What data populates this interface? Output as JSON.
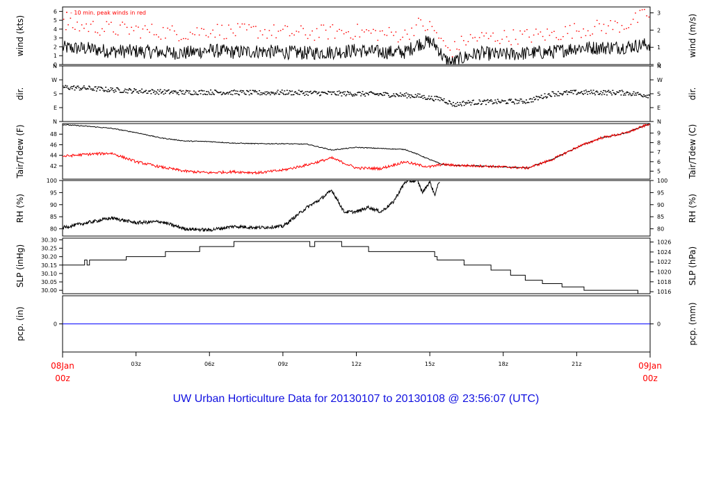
{
  "title": "UW Urban Horticulture Data for 20130107  to  20130108 @ 23:56:07  (UTC)",
  "colors": {
    "axis": "#000000",
    "primary": "#000000",
    "secondary": "#ff0000",
    "precip": "#0000ff",
    "date_label": "#ff0000",
    "title": "#1010e0"
  },
  "time_axis": {
    "range_hours": [
      0,
      24
    ],
    "start_label": [
      "08Jan",
      "00z"
    ],
    "end_label": [
      "09Jan",
      "00z"
    ],
    "ticks": [
      {
        "hour": 3,
        "label": "03z"
      },
      {
        "hour": 6,
        "label": "06z"
      },
      {
        "hour": 9,
        "label": "09z"
      },
      {
        "hour": 12,
        "label": "12z"
      },
      {
        "hour": 15,
        "label": "15z"
      },
      {
        "hour": 18,
        "label": "18z"
      },
      {
        "hour": 21,
        "label": "21z"
      }
    ]
  },
  "chart_data": [
    {
      "id": "wind",
      "type": "line",
      "ylabel_left": "wind (kts)",
      "ylabel_right": "wind (m/s)",
      "ylim": [
        0,
        6.5
      ],
      "left_ticks": [
        {
          "v": 0,
          "label": "0"
        },
        {
          "v": 1,
          "label": "1"
        },
        {
          "v": 2,
          "label": "2"
        },
        {
          "v": 3,
          "label": "3"
        },
        {
          "v": 4,
          "label": "4"
        },
        {
          "v": 5,
          "label": "5"
        },
        {
          "v": 6,
          "label": "6"
        }
      ],
      "right_ticks": [
        {
          "v": 0,
          "label": "0"
        },
        {
          "v": 1.944,
          "label": "1"
        },
        {
          "v": 3.888,
          "label": "2"
        },
        {
          "v": 5.832,
          "label": "3"
        }
      ],
      "annotation": "- 10 min. peak winds in red",
      "series": [
        {
          "name": "wind",
          "style": "line",
          "color": "#000000",
          "x": [
            0,
            1,
            2,
            3,
            4,
            5,
            6,
            7,
            8,
            9,
            10,
            11,
            12,
            13,
            14,
            14.5,
            15,
            15.3,
            15.6,
            15.9,
            16.5,
            17,
            18,
            19,
            20,
            21,
            22,
            23,
            24
          ],
          "y": [
            1.9,
            1.8,
            1.5,
            1.5,
            1.4,
            1.3,
            1.6,
            1.4,
            1.5,
            1.4,
            1.3,
            1.4,
            1.6,
            1.4,
            1.4,
            2.3,
            2.6,
            2.0,
            0.6,
            0.2,
            0.9,
            1.3,
            1.1,
            1.3,
            1.4,
            1.9,
            1.9,
            2.0,
            2.3
          ],
          "noise": 0.8
        },
        {
          "name": "10 min. peak winds",
          "style": "dots",
          "color": "#ff0000",
          "x": [
            0,
            1,
            2,
            3,
            4,
            5,
            6,
            7,
            8,
            9,
            10,
            11,
            12,
            13,
            14,
            14.5,
            15,
            15.3,
            15.6,
            15.9,
            16.5,
            17,
            18,
            19,
            20,
            21,
            22,
            23,
            24
          ],
          "y": [
            4.4,
            4.3,
            4.0,
            3.9,
            3.7,
            3.5,
            3.9,
            3.7,
            3.8,
            3.6,
            3.5,
            3.7,
            3.7,
            3.5,
            3.3,
            4.5,
            4.2,
            3.5,
            2.0,
            1.6,
            2.8,
            3.0,
            3.1,
            3.2,
            3.4,
            3.9,
            4.2,
            4.5,
            5.8
          ],
          "noise": 0.9
        }
      ]
    },
    {
      "id": "dir",
      "type": "scatter",
      "ylabel_left": "dir.",
      "ylabel_right": "dir.",
      "ylim": [
        0,
        360
      ],
      "left_ticks": [
        {
          "v": 0,
          "label": "N"
        },
        {
          "v": 90,
          "label": "E"
        },
        {
          "v": 180,
          "label": "S"
        },
        {
          "v": 270,
          "label": "W"
        },
        {
          "v": 360,
          "label": "N"
        }
      ],
      "right_ticks": [
        {
          "v": 0,
          "label": "N"
        },
        {
          "v": 90,
          "label": "E"
        },
        {
          "v": 180,
          "label": "S"
        },
        {
          "v": 270,
          "label": "W"
        },
        {
          "v": 360,
          "label": "N"
        }
      ],
      "series": [
        {
          "name": "direction",
          "style": "dots",
          "color": "#000000",
          "x": [
            0,
            1,
            2,
            3,
            4,
            5,
            6,
            7,
            8,
            9,
            10,
            11,
            12,
            13,
            14,
            14.5,
            15,
            15.5,
            16,
            16.5,
            17,
            18,
            19,
            20,
            21,
            22,
            23,
            24
          ],
          "y": [
            222,
            215,
            205,
            198,
            192,
            188,
            190,
            188,
            185,
            188,
            185,
            182,
            180,
            176,
            170,
            165,
            152,
            145,
            108,
            122,
            125,
            128,
            132,
            180,
            188,
            188,
            186,
            168
          ],
          "noise": 16
        }
      ]
    },
    {
      "id": "temp",
      "type": "line",
      "ylabel_left": "Tair/Tdew (F)",
      "ylabel_right": "Tair/Tdew (C)",
      "ylim": [
        39.5,
        50
      ],
      "left_ticks": [
        {
          "v": 42,
          "label": "42"
        },
        {
          "v": 44,
          "label": "44"
        },
        {
          "v": 46,
          "label": "46"
        },
        {
          "v": 48,
          "label": "48"
        }
      ],
      "right_ticks": [
        {
          "v": 41,
          "label": "5"
        },
        {
          "v": 42.8,
          "label": "6"
        },
        {
          "v": 44.6,
          "label": "7"
        },
        {
          "v": 46.4,
          "label": "8"
        },
        {
          "v": 48.2,
          "label": "9"
        }
      ],
      "series": [
        {
          "name": "Tair",
          "style": "line",
          "color": "#000000",
          "x": [
            0,
            1,
            2,
            3,
            4,
            5,
            6,
            7,
            8,
            9,
            10,
            11,
            12,
            13,
            14,
            14.5,
            15,
            15.5,
            16,
            17,
            18,
            19,
            20,
            21,
            22,
            23,
            24
          ],
          "y": [
            49.8,
            49.5,
            49.1,
            48.3,
            47.3,
            46.7,
            46.6,
            46.3,
            46.2,
            46.2,
            46.1,
            45.0,
            45.5,
            45.3,
            45.1,
            44.2,
            43.2,
            42.3,
            42.1,
            42.0,
            41.8,
            41.6,
            43.2,
            45.5,
            47.3,
            48.2,
            50.0
          ],
          "noise": 0.08
        },
        {
          "name": "Tdew",
          "style": "line",
          "color": "#ff0000",
          "x": [
            0,
            1,
            2,
            3,
            4,
            5,
            6,
            7,
            8,
            9,
            10,
            11,
            12,
            13,
            14,
            14.5,
            15,
            15.5,
            16,
            17,
            18,
            19,
            20,
            21,
            22,
            23,
            24
          ],
          "y": [
            43.8,
            44.2,
            44.4,
            42.8,
            41.8,
            41.0,
            40.7,
            40.9,
            40.7,
            41.2,
            42.2,
            43.5,
            41.6,
            41.5,
            42.8,
            42.2,
            41.8,
            42.3,
            42.1,
            42.0,
            41.8,
            41.6,
            43.2,
            45.5,
            47.3,
            48.2,
            50.0
          ],
          "noise": 0.25
        }
      ]
    },
    {
      "id": "rh",
      "type": "line",
      "ylabel_left": "RH (%)",
      "ylabel_right": "RH (%)",
      "ylim": [
        77,
        100
      ],
      "left_ticks": [
        {
          "v": 80,
          "label": "80"
        },
        {
          "v": 85,
          "label": "85"
        },
        {
          "v": 90,
          "label": "90"
        },
        {
          "v": 95,
          "label": "95"
        },
        {
          "v": 100,
          "label": "100"
        }
      ],
      "right_ticks": [
        {
          "v": 80,
          "label": "80"
        },
        {
          "v": 85,
          "label": "85"
        },
        {
          "v": 90,
          "label": "90"
        },
        {
          "v": 95,
          "label": "95"
        },
        {
          "v": 100,
          "label": "100"
        }
      ],
      "series": [
        {
          "name": "RH",
          "style": "line",
          "color": "#000000",
          "x": [
            0,
            1,
            2,
            3,
            4,
            5,
            6,
            7,
            8,
            9,
            9.5,
            10,
            10.5,
            11,
            11.5,
            12,
            12.5,
            13,
            13.5,
            14,
            14.5,
            14.7,
            15,
            15.2,
            15.4
          ],
          "y": [
            80.5,
            82.5,
            84.5,
            82.5,
            83,
            80,
            79.5,
            81,
            80.5,
            81,
            85,
            89,
            92,
            96,
            87,
            87,
            89,
            87,
            91,
            99.5,
            100,
            95,
            99.5,
            94,
            100
          ],
          "noise": 0.7
        }
      ]
    },
    {
      "id": "slp",
      "type": "line",
      "ylabel_left": "SLP (inHg)",
      "ylabel_right": "SLP (hPa)",
      "ylim": [
        29.98,
        30.31
      ],
      "left_ticks": [
        {
          "v": 30.0,
          "label": "30.00"
        },
        {
          "v": 30.05,
          "label": "30.05"
        },
        {
          "v": 30.1,
          "label": "30.10"
        },
        {
          "v": 30.15,
          "label": "30.15"
        },
        {
          "v": 30.2,
          "label": "30.20"
        },
        {
          "v": 30.25,
          "label": "30.25"
        },
        {
          "v": 30.3,
          "label": "30.30"
        }
      ],
      "right_ticks": [
        {
          "v": 29.9916,
          "label": "1016"
        },
        {
          "v": 30.0507,
          "label": "1018"
        },
        {
          "v": 30.1097,
          "label": "1020"
        },
        {
          "v": 30.1688,
          "label": "1022"
        },
        {
          "v": 30.2278,
          "label": "1024"
        },
        {
          "v": 30.2869,
          "label": "1026"
        }
      ],
      "series": [
        {
          "name": "SLP",
          "style": "step",
          "color": "#000000",
          "x": [
            0,
            0.9,
            1.0,
            1.1,
            1.2,
            2.6,
            4.2,
            5.6,
            7.0,
            10.1,
            10.3,
            11.4,
            12.5,
            15.2,
            15.3,
            16.4,
            17.5,
            18.3,
            18.9,
            19.6,
            20.4,
            21.3,
            23.5,
            24
          ],
          "y": [
            30.15,
            30.18,
            30.15,
            30.18,
            30.18,
            30.2,
            30.23,
            30.26,
            30.29,
            30.26,
            30.29,
            30.26,
            30.23,
            30.2,
            30.18,
            30.15,
            30.12,
            30.09,
            30.06,
            30.04,
            30.02,
            30.0,
            29.98,
            29.98
          ]
        }
      ]
    },
    {
      "id": "pcp",
      "type": "line",
      "ylabel_left": "pcp. (in)",
      "ylabel_right": "pcp. (mm)",
      "ylim": [
        -1,
        1
      ],
      "left_ticks": [
        {
          "v": 0,
          "label": "0"
        }
      ],
      "right_ticks": [
        {
          "v": 0,
          "label": "0"
        }
      ],
      "series": [
        {
          "name": "precip",
          "style": "line",
          "color": "#0000ff",
          "x": [
            0,
            24
          ],
          "y": [
            0,
            0
          ]
        }
      ]
    }
  ]
}
